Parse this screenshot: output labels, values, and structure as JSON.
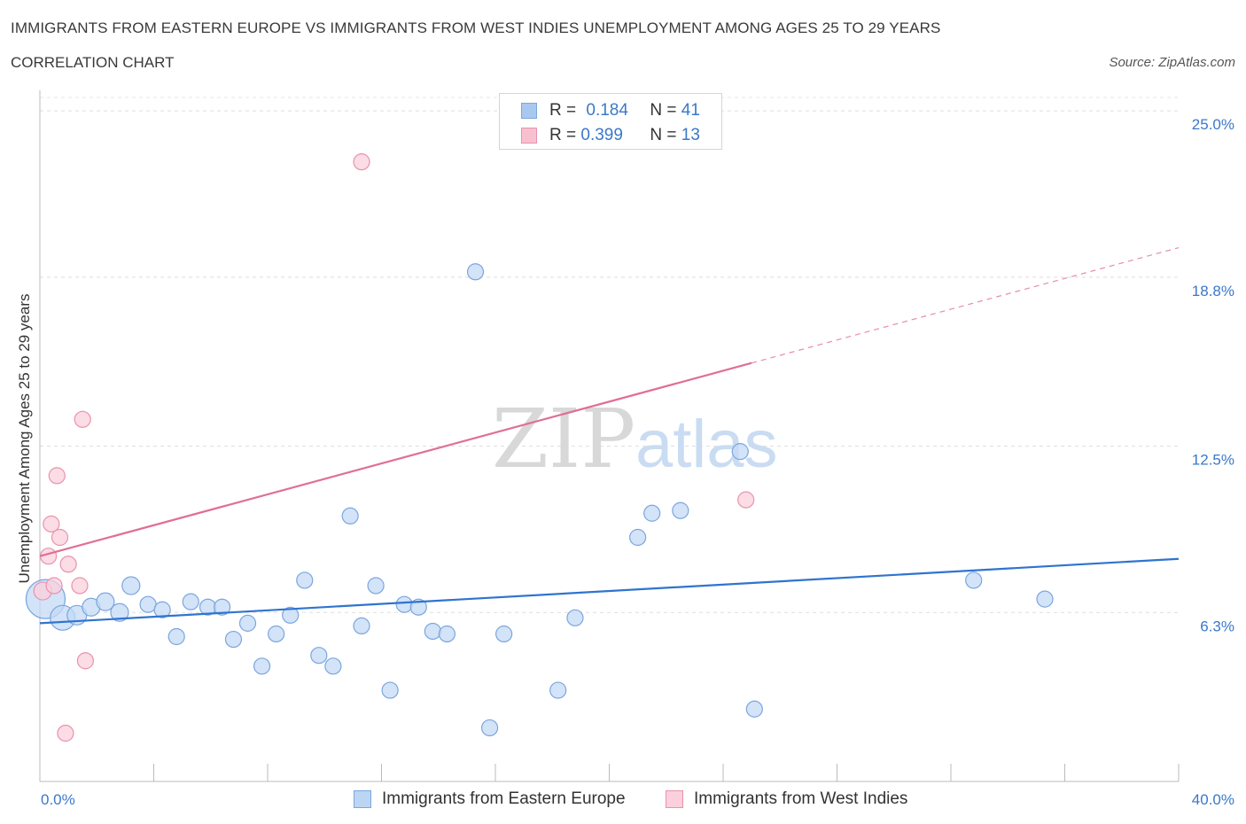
{
  "header": {
    "title": "IMMIGRANTS FROM EASTERN EUROPE VS IMMIGRANTS FROM WEST INDIES UNEMPLOYMENT AMONG AGES 25 TO 29 YEARS",
    "subtitle": "CORRELATION CHART",
    "source": "Source: ZipAtlas.com"
  },
  "watermark": {
    "zip": "ZIP",
    "atlas": "atlas"
  },
  "legend": {
    "r_label": "R =",
    "n_label": "N =",
    "rows": [
      {
        "r": "0.184",
        "n": "41",
        "color": "#a9c8f0",
        "border": "#7aa6de"
      },
      {
        "r": "0.399",
        "n": "13",
        "color": "#f7c0d0",
        "border": "#e892ad"
      }
    ]
  },
  "bottom_legend": [
    {
      "label": "Immigrants from Eastern Europe",
      "color": "#bcd5f5",
      "border": "#7aa6de"
    },
    {
      "label": "Immigrants from West Indies",
      "color": "#fbd0dc",
      "border": "#e892ad"
    }
  ],
  "chart_data": {
    "type": "scatter",
    "xlabel": "",
    "ylabel": "Unemployment Among Ages 25 to 29 years",
    "xlim": [
      0,
      40
    ],
    "ylim": [
      0,
      25.5
    ],
    "x_tick_labels": [
      {
        "value": 0,
        "label": "0.0%"
      },
      {
        "value": 40,
        "label": "40.0%"
      }
    ],
    "y_tick_labels": [
      {
        "value": 6.3,
        "label": "6.3%"
      },
      {
        "value": 12.5,
        "label": "12.5%"
      },
      {
        "value": 18.8,
        "label": "18.8%"
      },
      {
        "value": 25.0,
        "label": "25.0%"
      }
    ],
    "grid": "horizontal dashed",
    "series": [
      {
        "name": "Immigrants from Eastern Europe",
        "color": "#7aa6de",
        "fill": "#c4daf6",
        "trend_color": "#2f74cf",
        "trend": {
          "x0": 0,
          "y0": 5.9,
          "x1": 40,
          "y1": 8.3
        },
        "points": [
          [
            0.2,
            6.8,
            22
          ],
          [
            0.8,
            6.1,
            14
          ],
          [
            1.3,
            6.2,
            11
          ],
          [
            1.8,
            6.5,
            10
          ],
          [
            2.3,
            6.7,
            10
          ],
          [
            2.8,
            6.3,
            10
          ],
          [
            3.2,
            7.3,
            10
          ],
          [
            3.8,
            6.6,
            9
          ],
          [
            4.3,
            6.4,
            9
          ],
          [
            4.8,
            5.4,
            9
          ],
          [
            5.3,
            6.7,
            9
          ],
          [
            5.9,
            6.5,
            9
          ],
          [
            6.4,
            6.5,
            9
          ],
          [
            6.8,
            5.3,
            9
          ],
          [
            7.3,
            5.9,
            9
          ],
          [
            7.8,
            4.3,
            9
          ],
          [
            8.3,
            5.5,
            9
          ],
          [
            8.8,
            6.2,
            9
          ],
          [
            9.3,
            7.5,
            9
          ],
          [
            9.8,
            4.7,
            9
          ],
          [
            10.3,
            4.3,
            9
          ],
          [
            10.9,
            9.9,
            9
          ],
          [
            11.3,
            5.8,
            9
          ],
          [
            11.8,
            7.3,
            9
          ],
          [
            12.3,
            3.4,
            9
          ],
          [
            12.8,
            6.6,
            9
          ],
          [
            13.3,
            6.5,
            9
          ],
          [
            13.8,
            5.6,
            9
          ],
          [
            14.3,
            5.5,
            9
          ],
          [
            15.3,
            19.0,
            9
          ],
          [
            15.8,
            2.0,
            9
          ],
          [
            16.3,
            5.5,
            9
          ],
          [
            18.2,
            3.4,
            9
          ],
          [
            18.8,
            6.1,
            9
          ],
          [
            21.0,
            9.1,
            9
          ],
          [
            21.5,
            10.0,
            9
          ],
          [
            22.5,
            10.1,
            9
          ],
          [
            24.6,
            12.3,
            9
          ],
          [
            25.1,
            2.7,
            9
          ],
          [
            32.8,
            7.5,
            9
          ],
          [
            35.3,
            6.8,
            9
          ]
        ]
      },
      {
        "name": "Immigrants from West Indies",
        "color": "#e892ad",
        "fill": "#fbd0dc",
        "trend_color": "#e06f95",
        "trend": {
          "x0": 0,
          "y0": 8.4,
          "x1": 25,
          "y1": 15.6
        },
        "trend_extended": {
          "x0": 25,
          "y0": 15.6,
          "x1": 40,
          "y1": 19.9
        },
        "points": [
          [
            0.1,
            7.1,
            10
          ],
          [
            0.3,
            8.4,
            9
          ],
          [
            0.4,
            9.6,
            9
          ],
          [
            0.5,
            7.3,
            9
          ],
          [
            0.6,
            11.4,
            9
          ],
          [
            0.7,
            9.1,
            9
          ],
          [
            0.9,
            1.8,
            9
          ],
          [
            1.0,
            8.1,
            9
          ],
          [
            1.4,
            7.3,
            9
          ],
          [
            1.5,
            13.5,
            9
          ],
          [
            1.6,
            4.5,
            9
          ],
          [
            11.3,
            23.1,
            9
          ],
          [
            24.8,
            10.5,
            9
          ]
        ]
      }
    ]
  }
}
